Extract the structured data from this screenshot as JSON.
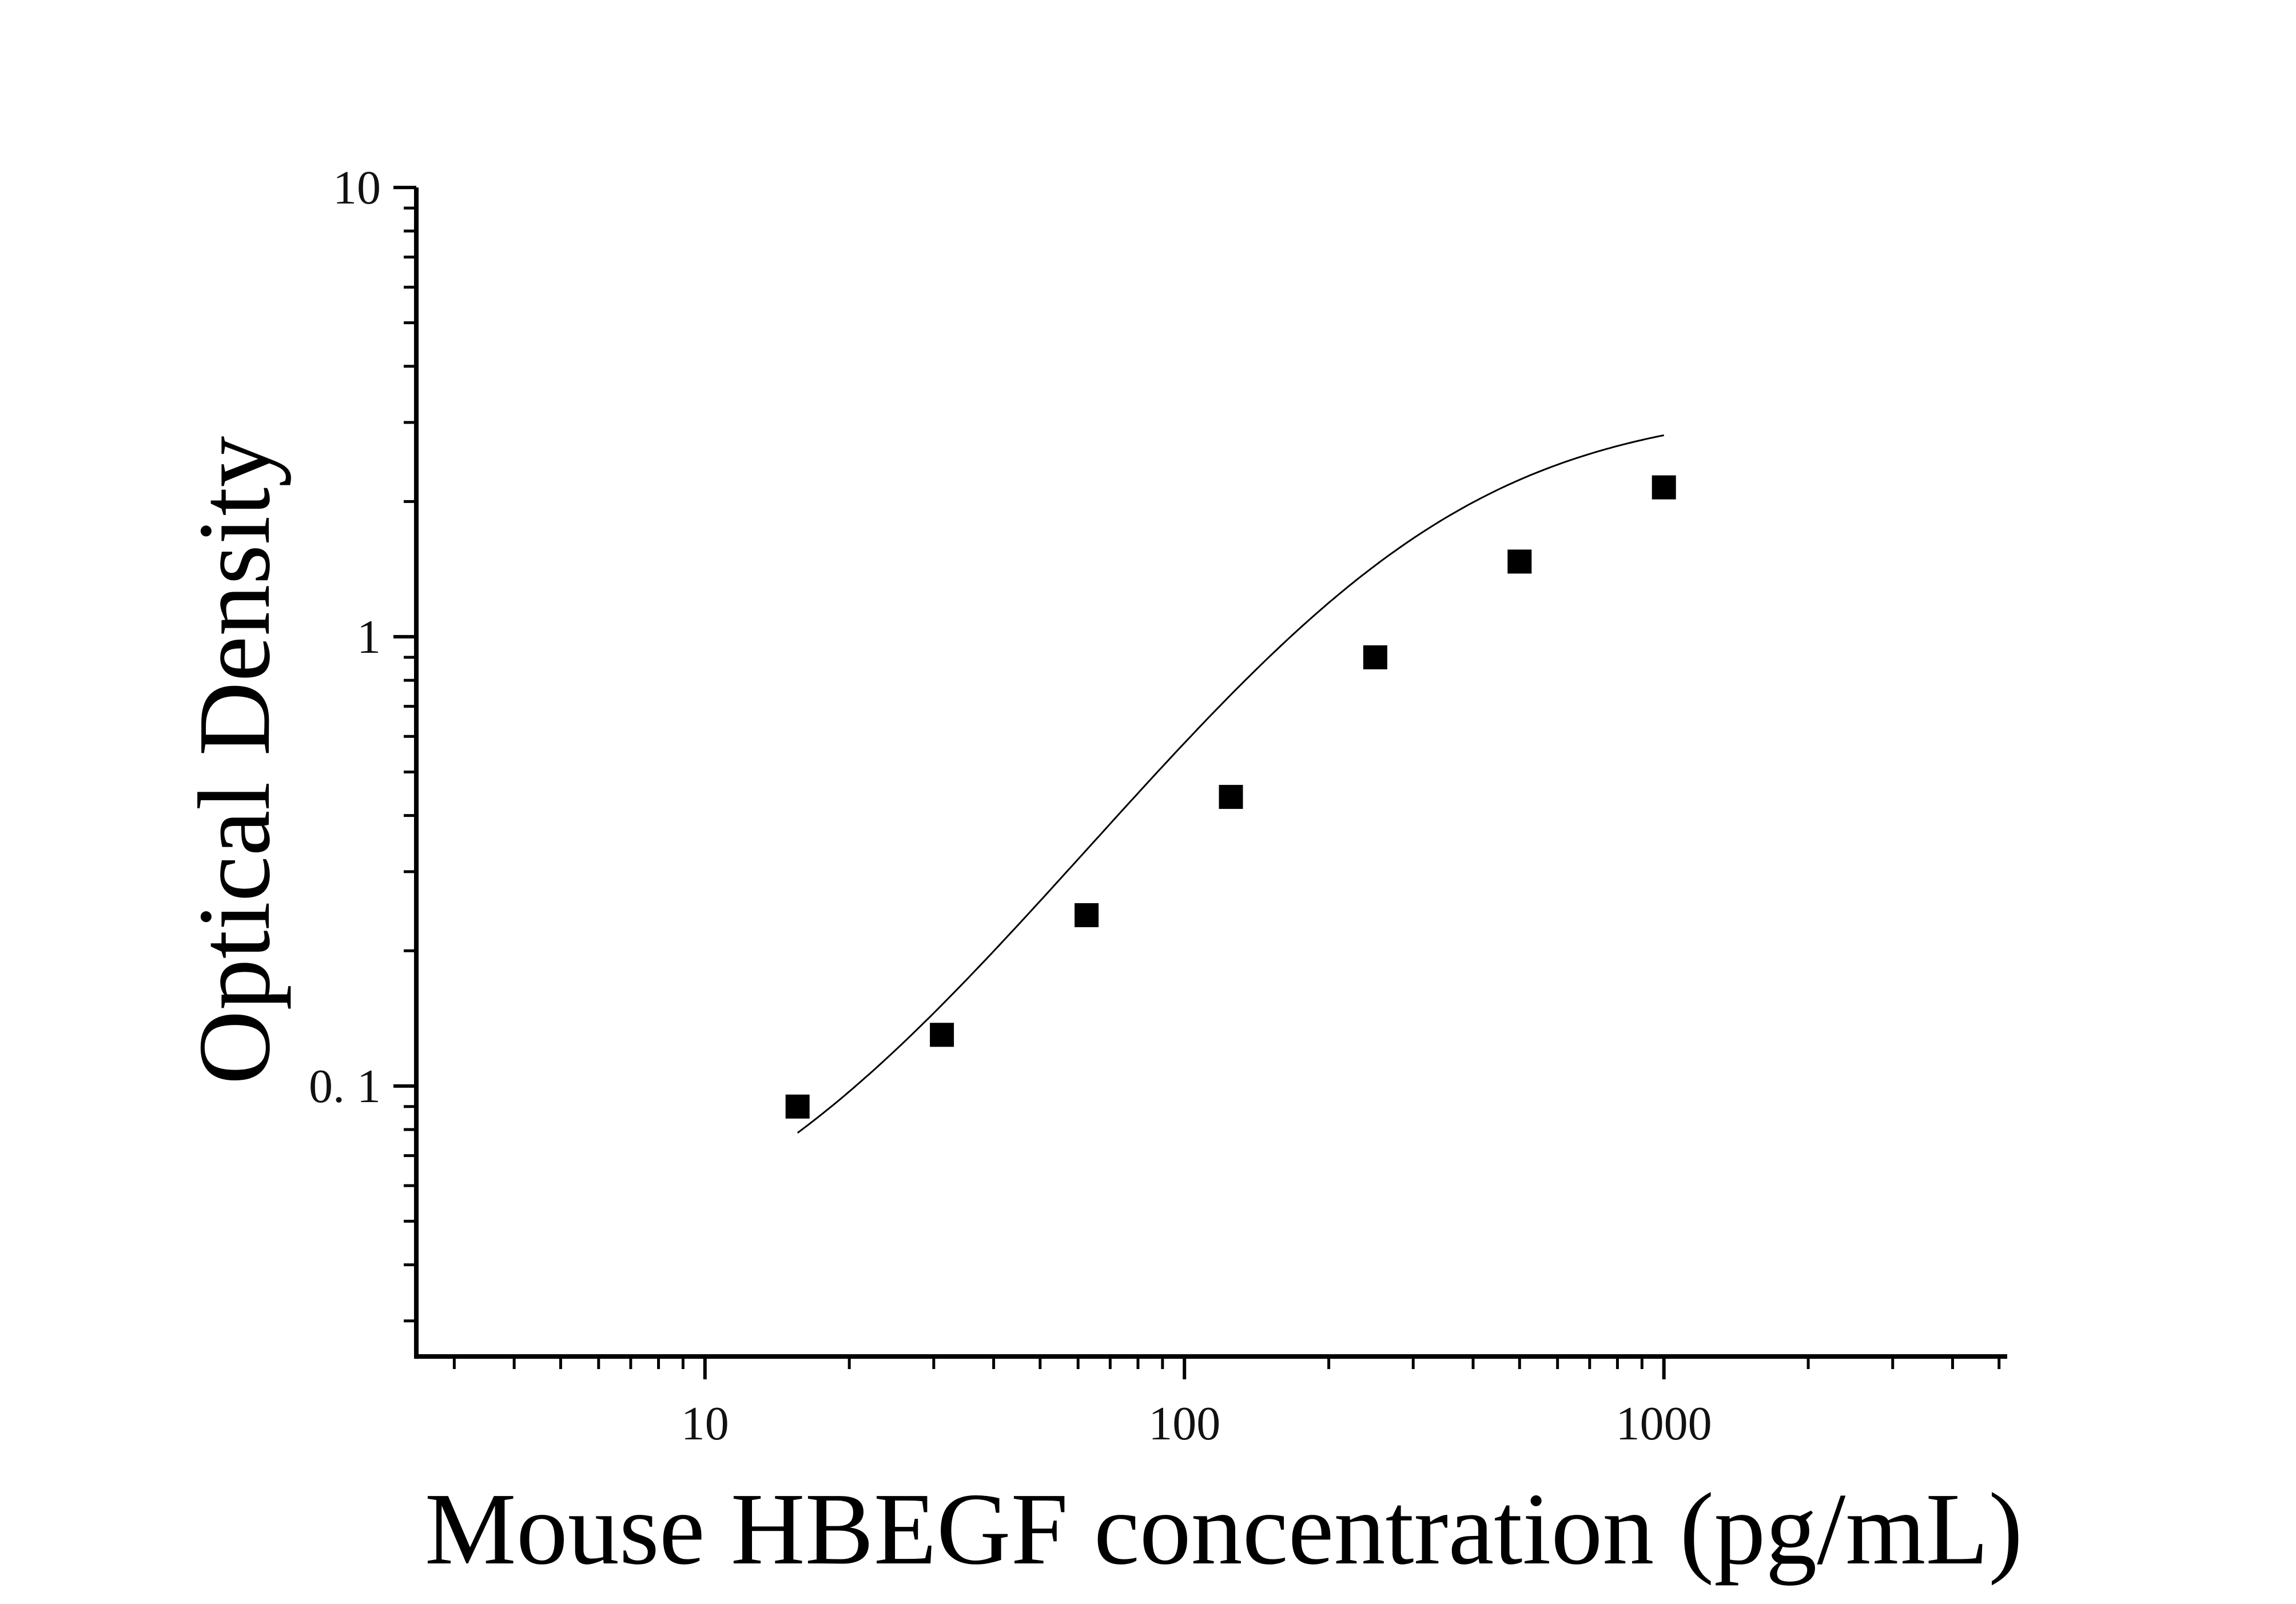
{
  "chart_data": {
    "type": "scatter",
    "title": "",
    "xlabel": "Mouse HBEGF concentration (pg/mL)",
    "ylabel": "Optical Density",
    "x_scale": "log",
    "y_scale": "log",
    "xlim": [
      2.5,
      5200
    ],
    "ylim": [
      0.025,
      10
    ],
    "x_ticks": [
      {
        "value": 10,
        "label": "10"
      },
      {
        "value": 100,
        "label": "100"
      },
      {
        "value": 1000,
        "label": "1000"
      }
    ],
    "y_ticks": [
      {
        "value": 0.1,
        "label": "0. 1"
      },
      {
        "value": 1,
        "label": "1"
      },
      {
        "value": 10,
        "label": "10"
      }
    ],
    "grid": false,
    "legend": "none",
    "series": [
      {
        "marker": "square",
        "color": "#000000",
        "x": [
          15.6,
          31.2,
          62.5,
          125,
          250,
          500,
          1000
        ],
        "y": [
          0.09,
          0.13,
          0.24,
          0.44,
          0.9,
          1.47,
          2.15
        ]
      }
    ],
    "fit_curve": {
      "type": "4PL",
      "color": "#000000",
      "A": 0.035,
      "B": 1.45,
      "C": 303,
      "D": 3.3,
      "x_range": [
        15.6,
        1000
      ]
    }
  }
}
